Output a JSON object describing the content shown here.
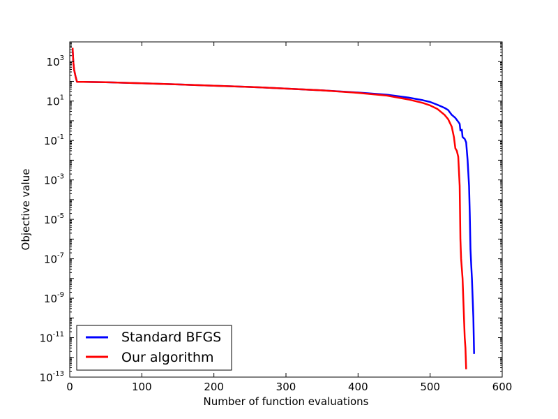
{
  "chart_data": {
    "type": "line",
    "title": "",
    "xlabel": "Number of function evaluations",
    "ylabel": "Objective value",
    "xlim": [
      0,
      600
    ],
    "ylim_log10": [
      -13,
      4
    ],
    "yscale": "log",
    "grid": false,
    "legend_placement": "lower-left",
    "x_ticks": [
      {
        "value": 0,
        "label": "0"
      },
      {
        "value": 100,
        "label": "100"
      },
      {
        "value": 200,
        "label": "200"
      },
      {
        "value": 300,
        "label": "300"
      },
      {
        "value": 400,
        "label": "400"
      },
      {
        "value": 500,
        "label": "500"
      },
      {
        "value": 600,
        "label": "600"
      }
    ],
    "y_ticks": [
      {
        "exp": 3,
        "base": "10",
        "sup": "3"
      },
      {
        "exp": 1,
        "base": "10",
        "sup": "1"
      },
      {
        "exp": -1,
        "base": "10",
        "sup": "-1"
      },
      {
        "exp": -3,
        "base": "10",
        "sup": "-3"
      },
      {
        "exp": -5,
        "base": "10",
        "sup": "-5"
      },
      {
        "exp": -7,
        "base": "10",
        "sup": "-7"
      },
      {
        "exp": -9,
        "base": "10",
        "sup": "-9"
      },
      {
        "exp": -11,
        "base": "10",
        "sup": "-11"
      },
      {
        "exp": -13,
        "base": "10",
        "sup": "-13"
      }
    ],
    "series": [
      {
        "name": "Standard BFGS",
        "color": "#0000ff",
        "points": [
          [
            4,
            4000
          ],
          [
            5,
            900
          ],
          [
            6,
            400
          ],
          [
            8,
            180
          ],
          [
            10,
            95
          ],
          [
            50,
            90
          ],
          [
            100,
            80
          ],
          [
            150,
            70
          ],
          [
            200,
            60
          ],
          [
            250,
            52
          ],
          [
            300,
            43
          ],
          [
            350,
            35
          ],
          [
            400,
            27
          ],
          [
            440,
            21
          ],
          [
            470,
            15
          ],
          [
            490,
            11
          ],
          [
            500,
            9
          ],
          [
            510,
            6.5
          ],
          [
            520,
            4.5
          ],
          [
            525,
            3.5
          ],
          [
            530,
            2
          ],
          [
            535,
            1.4
          ],
          [
            538,
            1
          ],
          [
            541,
            0.7
          ],
          [
            542,
            0.32
          ],
          [
            544,
            0.35
          ],
          [
            545,
            0.15
          ],
          [
            548,
            0.12
          ],
          [
            550,
            0.08
          ],
          [
            552,
            0.01
          ],
          [
            554,
            0.0005
          ],
          [
            555,
            2e-05
          ],
          [
            556,
            3e-07
          ],
          [
            557,
            5e-08
          ],
          [
            558,
            1e-08
          ],
          [
            559,
            1e-09
          ],
          [
            560,
            1e-10
          ],
          [
            561,
            1.5e-12
          ]
        ]
      },
      {
        "name": "Our algorithm",
        "color": "#ff0000",
        "points": [
          [
            4,
            5000
          ],
          [
            5,
            900
          ],
          [
            6,
            400
          ],
          [
            8,
            180
          ],
          [
            10,
            95
          ],
          [
            50,
            90
          ],
          [
            100,
            80
          ],
          [
            150,
            70
          ],
          [
            200,
            60
          ],
          [
            250,
            52
          ],
          [
            300,
            43
          ],
          [
            350,
            35
          ],
          [
            400,
            26
          ],
          [
            440,
            19
          ],
          [
            470,
            12
          ],
          [
            490,
            8
          ],
          [
            500,
            6
          ],
          [
            510,
            4
          ],
          [
            520,
            2
          ],
          [
            525,
            1.2
          ],
          [
            530,
            0.5
          ],
          [
            533,
            0.15
          ],
          [
            535,
            0.04
          ],
          [
            537,
            0.03
          ],
          [
            539,
            0.015
          ],
          [
            541,
            0.0005
          ],
          [
            542,
            1e-06
          ],
          [
            543,
            1e-07
          ],
          [
            545,
            1e-08
          ],
          [
            546,
            1e-09
          ],
          [
            547,
            1e-10
          ],
          [
            548,
            1e-11
          ],
          [
            549,
            3e-12
          ],
          [
            550,
            2.5e-13
          ]
        ]
      }
    ]
  }
}
